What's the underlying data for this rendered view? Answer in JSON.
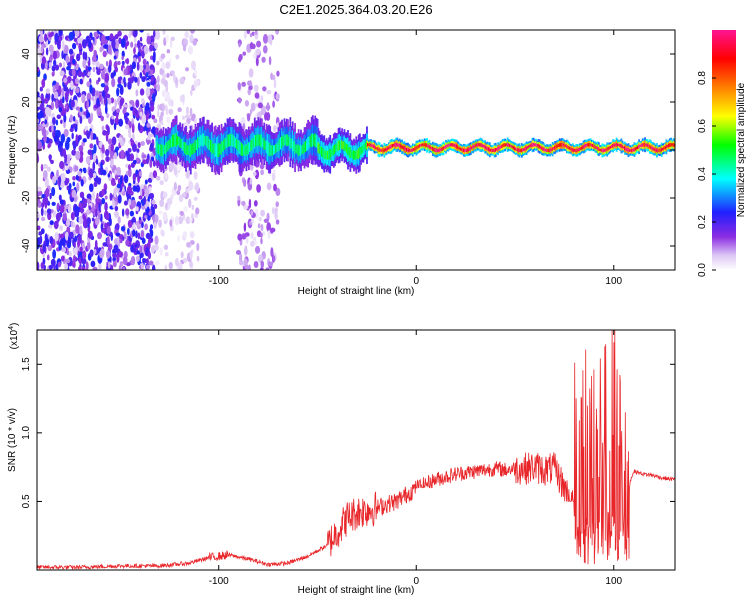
{
  "title": "C2E1.2025.364.03.20.E26",
  "colors": {
    "snr_line": "#e8262a",
    "frame": "#000000"
  },
  "chart_data": [
    {
      "type": "heatmap",
      "title": "C2E1.2025.364.03.20.E26",
      "xlabel": "Height of straight line (km)",
      "ylabel": "Frequency (Hz)",
      "xlim": [
        -192,
        131
      ],
      "ylim": [
        -50,
        50
      ],
      "xticks": [
        -100,
        0,
        100
      ],
      "xtick_labels": [
        "-100",
        "0",
        "100"
      ],
      "yticks": [
        -40,
        -20,
        0,
        20,
        40
      ],
      "ytick_labels": [
        "-40",
        "-20",
        "0",
        "20",
        "40"
      ],
      "colorbar": {
        "label": "Normalized spectral amplitude",
        "range": [
          0,
          1
        ],
        "ticks": [
          0.0,
          0.2,
          0.4,
          0.6,
          0.8
        ],
        "tick_labels": [
          "0.0",
          "0.2",
          "0.4",
          "0.6",
          "0.8"
        ],
        "colormap": "rainbow: violet-blue-cyan-green-yellow-orange-red-magenta"
      },
      "regions": [
        {
          "name": "broadband noise",
          "x_range": [
            -192,
            -132
          ],
          "freq_range": [
            -50,
            50
          ],
          "amplitude": 0.15
        },
        {
          "name": "sparse noise",
          "x_range": [
            -132,
            -110
          ],
          "freq_range": [
            -50,
            50
          ],
          "amplitude": 0.05
        },
        {
          "name": "noise streak",
          "x_range": [
            -90,
            -70
          ],
          "freq_range": [
            -50,
            50
          ],
          "amplitude": 0.08
        },
        {
          "name": "wide signal band",
          "x_range": [
            -132,
            -50
          ],
          "freq_center": 2,
          "freq_halfwidth": 5,
          "amplitude": 0.45
        },
        {
          "name": "tapering signal",
          "x_range": [
            -50,
            -25
          ],
          "freq_center": 0,
          "freq_halfwidth": 4,
          "amplitude": 0.5
        },
        {
          "name": "narrow carrier",
          "x_range": [
            -25,
            131
          ],
          "freq_center": 1,
          "freq_halfwidth": 1.5,
          "amplitude": 0.95
        }
      ]
    },
    {
      "type": "line",
      "title": "",
      "xlabel": "Height of straight line (km)",
      "ylabel": "SNR (10 * v/v)",
      "y_scale_label": "(x10",
      "y_scale_exp": "4",
      "y_scale_close": ")",
      "xlim": [
        -192,
        131
      ],
      "ylim": [
        0,
        1.75
      ],
      "xticks": [
        -100,
        0,
        100
      ],
      "xtick_labels": [
        "-100",
        "0",
        "100"
      ],
      "yticks": [
        0.5,
        1.0,
        1.5
      ],
      "ytick_labels": [
        "0.5",
        "1.0",
        "1.5"
      ],
      "series": [
        {
          "name": "SNR",
          "x": [
            -192,
            -170,
            -150,
            -130,
            -115,
            -105,
            -95,
            -85,
            -75,
            -65,
            -55,
            -45,
            -40,
            -35,
            -30,
            -25,
            -20,
            -15,
            -10,
            -5,
            0,
            5,
            10,
            15,
            20,
            25,
            30,
            35,
            40,
            45,
            50,
            55,
            60,
            65,
            70,
            75,
            80,
            85,
            90,
            95,
            100,
            105,
            110,
            115,
            120,
            125,
            131
          ],
          "values": [
            0.02,
            0.02,
            0.03,
            0.03,
            0.05,
            0.09,
            0.11,
            0.08,
            0.04,
            0.05,
            0.1,
            0.18,
            0.28,
            0.38,
            0.42,
            0.44,
            0.45,
            0.48,
            0.5,
            0.55,
            0.6,
            0.63,
            0.66,
            0.68,
            0.7,
            0.71,
            0.72,
            0.73,
            0.74,
            0.73,
            0.74,
            0.74,
            0.75,
            0.73,
            0.74,
            0.6,
            0.45,
            0.65,
            0.7,
            0.55,
            0.95,
            0.5,
            0.72,
            0.7,
            0.69,
            0.67,
            0.66
          ],
          "fluctuation_ranges": [
            {
              "x_range": [
                -105,
                -95
              ],
              "min": 0.04,
              "max": 0.18
            },
            {
              "x_range": [
                -45,
                -20
              ],
              "min": 0.1,
              "max": 0.68
            },
            {
              "x_range": [
                -20,
                0
              ],
              "min": 0.35,
              "max": 0.65
            },
            {
              "x_range": [
                0,
                50
              ],
              "min": 0.6,
              "max": 0.85
            },
            {
              "x_range": [
                50,
                80
              ],
              "min": 0.5,
              "max": 1.03
            },
            {
              "x_range": [
                80,
                108
              ],
              "min": 0.03,
              "max": 1.75
            }
          ]
        }
      ]
    }
  ]
}
